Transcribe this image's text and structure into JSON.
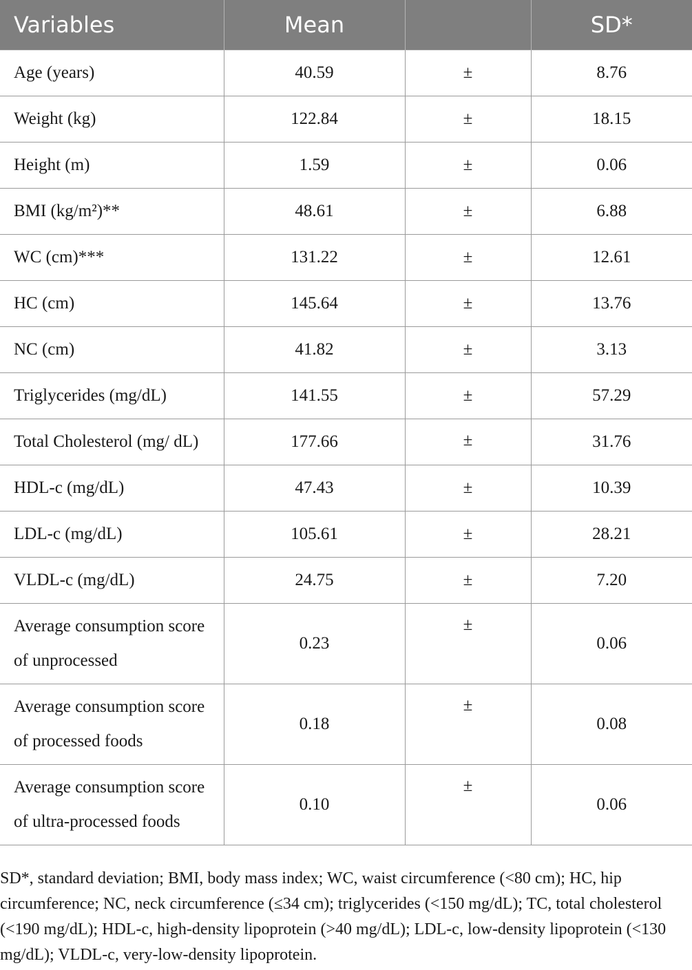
{
  "table": {
    "headers": [
      "Variables",
      "Mean",
      "",
      "SD*"
    ],
    "rows": [
      {
        "variable": "Age (years)",
        "mean": "40.59",
        "pm": "±",
        "sd": "8.76",
        "multi": false
      },
      {
        "variable": "Weight (kg)",
        "mean": "122.84",
        "pm": "±",
        "sd": "18.15",
        "multi": false
      },
      {
        "variable": "Height (m)",
        "mean": "1.59",
        "pm": "±",
        "sd": "0.06",
        "multi": false
      },
      {
        "variable": "BMI (kg/m²)**",
        "mean": "48.61",
        "pm": "±",
        "sd": "6.88",
        "multi": false
      },
      {
        "variable": "WC (cm)***",
        "mean": "131.22",
        "pm": "±",
        "sd": "12.61",
        "multi": false
      },
      {
        "variable": "HC (cm)",
        "mean": "145.64",
        "pm": "±",
        "sd": "13.76",
        "multi": false
      },
      {
        "variable": "NC (cm)",
        "mean": "41.82",
        "pm": "±",
        "sd": "3.13",
        "multi": false
      },
      {
        "variable": "Triglycerides (mg/dL)",
        "mean": "141.55",
        "pm": "±",
        "sd": "57.29",
        "multi": false
      },
      {
        "variable": "Total Cholesterol (mg/ dL)",
        "mean": "177.66",
        "pm": "±",
        "sd": "31.76",
        "multi": true
      },
      {
        "variable": "HDL-c (mg/dL)",
        "mean": "47.43",
        "pm": "±",
        "sd": "10.39",
        "multi": false
      },
      {
        "variable": "LDL-c (mg/dL)",
        "mean": "105.61",
        "pm": "±",
        "sd": "28.21",
        "multi": false
      },
      {
        "variable": "VLDL-c (mg/dL)",
        "mean": "24.75",
        "pm": "±",
        "sd": "7.20",
        "multi": false
      },
      {
        "variable": "Average consumption score of unprocessed",
        "mean": "0.23",
        "pm": "±",
        "sd": "0.06",
        "multi": true
      },
      {
        "variable": "Average consumption score of processed foods",
        "mean": "0.18",
        "pm": "±",
        "sd": "0.08",
        "multi": true
      },
      {
        "variable": "Average consumption score of ultra-processed foods",
        "mean": "0.10",
        "pm": "±",
        "sd": "0.06",
        "multi": true
      }
    ]
  },
  "footnote": "SD*, standard deviation; BMI, body mass index; WC, waist circumference (<80 cm); HC, hip circumference; NC, neck circumference (≤34 cm); triglycerides (<150 mg/dL); TC, total cholesterol (<190 mg/dL); HDL-c, high-density lipoprotein (>40 mg/dL); LDL-c, low-density lipoprotein (<130 mg/dL); VLDL-c, very-low-density lipoprotein."
}
